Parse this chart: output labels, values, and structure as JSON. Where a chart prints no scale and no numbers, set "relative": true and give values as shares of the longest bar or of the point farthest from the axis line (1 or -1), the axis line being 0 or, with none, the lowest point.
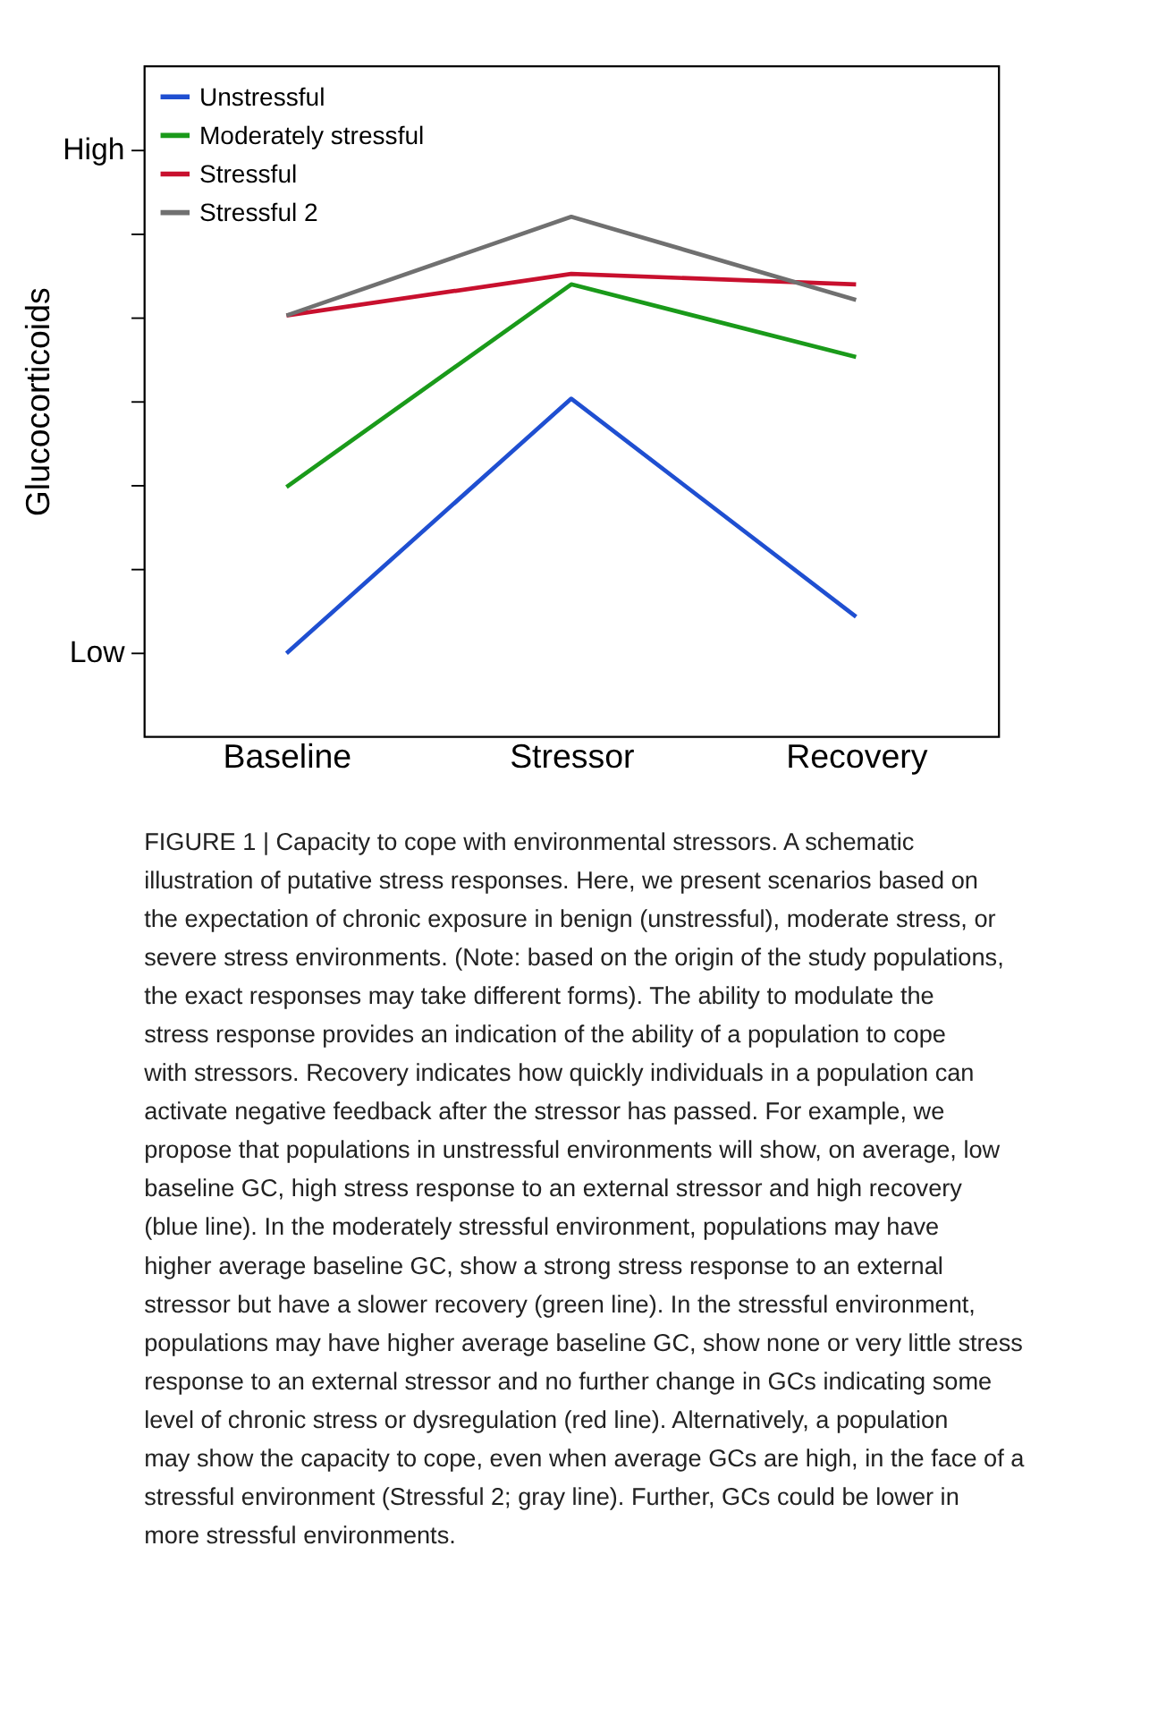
{
  "chart_data": {
    "type": "line",
    "ylabel": "Glucocorticoids",
    "categories": [
      "Baseline",
      "Stressor",
      "Recovery"
    ],
    "relative": true,
    "series": [
      {
        "name": "Unstressful",
        "color": "#1f4fd1",
        "values": [
          0.16,
          0.65,
          0.23
        ]
      },
      {
        "name": "Moderately stressful",
        "color": "#1a9a1a",
        "values": [
          0.48,
          0.87,
          0.73
        ]
      },
      {
        "name": "Stressful",
        "color": "#c8102e",
        "values": [
          0.81,
          0.89,
          0.87
        ]
      },
      {
        "name": "Stressful 2",
        "color": "#707070",
        "values": [
          0.81,
          1,
          0.84
        ]
      }
    ],
    "grid": false,
    "legend": "top left",
    "marker": "none",
    "line_style": "solid",
    "annotations": [
      "High",
      "Low",
      "FIGURE 1 | Capacity to cope with environmental stressors. A schematic illustration of putative stress responses. Here, we present scenarios based on the expectation of chronic exposure in benign (unstressful), moderate stress, or severe stress environments. (Note: based on the origin of the study populations, the exact responses may take different forms). The ability to modulate the stress response provides an indication of the ability of a population to cope with stressors. Recovery indicates how quickly individuals in a population can activate negative feedback after the stressor has passed. For example, we propose that populations in unstressful environments will show, on average, low baseline GC, high stress response to an external stressor and high recovery (blue line). In the moderately stressful environment, populations may have higher average baseline GC, show a strong stress response to an external stressor but have a slower recovery (green line). In the stressful environment, populations may have higher average baseline GC, show none or very little stress response to an external stressor and no further change in GCs indicating some level of chronic stress or dysregulation (red line). Alternatively, a population may show the capacity to cope, even when average GCs are high, in the face of a stressful environment (Stressful 2; gray line). Further, GCs could be lower in more stressful environments."
    ]
  }
}
